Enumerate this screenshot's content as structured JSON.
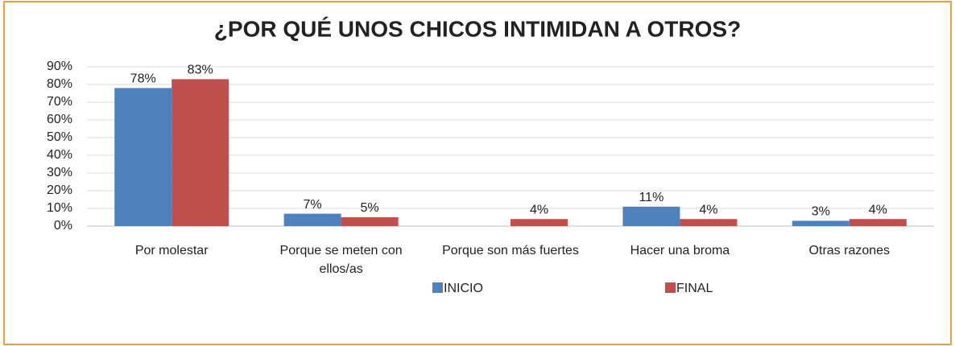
{
  "chart_data": {
    "type": "bar",
    "title": "¿POR QUÉ UNOS CHICOS INTIMIDAN A OTROS?",
    "categories": [
      "Por molestar",
      "Porque se meten con ellos/as",
      "Porque son más fuertes",
      "Hacer una broma",
      "Otras razones"
    ],
    "series": [
      {
        "name": "INICIO",
        "color": "#4f81bd",
        "values": [
          78,
          7,
          null,
          11,
          3
        ],
        "value_labels": [
          "78%",
          "7%",
          null,
          "11%",
          "3%"
        ]
      },
      {
        "name": "FINAL",
        "color": "#c0504d",
        "values": [
          83,
          5,
          4,
          4,
          4
        ],
        "value_labels": [
          "83%",
          "5%",
          "4%",
          "4%",
          "4%"
        ]
      }
    ],
    "ylim": [
      0,
      90
    ],
    "yticks": [
      {
        "value": 0,
        "label": "0%"
      },
      {
        "value": 10,
        "label": "10%"
      },
      {
        "value": 20,
        "label": "20%"
      },
      {
        "value": 30,
        "label": "30%"
      },
      {
        "value": 40,
        "label": "40%"
      },
      {
        "value": 50,
        "label": "50%"
      },
      {
        "value": 60,
        "label": "60%"
      },
      {
        "value": 70,
        "label": "70%"
      },
      {
        "value": 80,
        "label": "80%"
      },
      {
        "value": 90,
        "label": "90%"
      }
    ],
    "grid": true,
    "legend": "bottom"
  }
}
